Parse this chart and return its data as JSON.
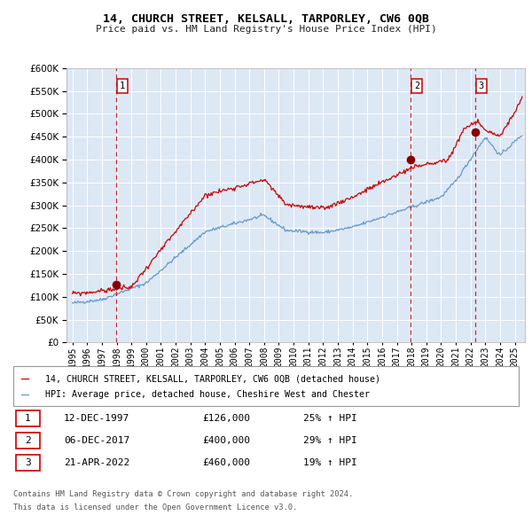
{
  "title": "14, CHURCH STREET, KELSALL, TARPORLEY, CW6 0QB",
  "subtitle": "Price paid vs. HM Land Registry's House Price Index (HPI)",
  "legend_red": "14, CHURCH STREET, KELSALL, TARPORLEY, CW6 0QB (detached house)",
  "legend_blue": "HPI: Average price, detached house, Cheshire West and Chester",
  "footer1": "Contains HM Land Registry data © Crown copyright and database right 2024.",
  "footer2": "This data is licensed under the Open Government Licence v3.0.",
  "transactions": [
    {
      "num": 1,
      "date": "12-DEC-1997",
      "price": "£126,000",
      "pct": "25% ↑ HPI",
      "x_year": 1997.95,
      "y_val": 126000
    },
    {
      "num": 2,
      "date": "06-DEC-2017",
      "price": "£400,000",
      "pct": "29% ↑ HPI",
      "x_year": 2017.93,
      "y_val": 400000
    },
    {
      "num": 3,
      "date": "21-APR-2022",
      "price": "£460,000",
      "pct": "19% ↑ HPI",
      "x_year": 2022.3,
      "y_val": 460000
    }
  ],
  "red_color": "#cc0000",
  "blue_color": "#6699cc",
  "bg_color": "#dde8f5",
  "grid_color": "#ffffff",
  "dot_color": "#880000",
  "ylim": [
    0,
    600000
  ],
  "yticks": [
    0,
    50000,
    100000,
    150000,
    200000,
    250000,
    300000,
    350000,
    400000,
    450000,
    500000,
    550000,
    600000
  ],
  "xlim_start": 1994.6,
  "xlim_end": 2025.7
}
